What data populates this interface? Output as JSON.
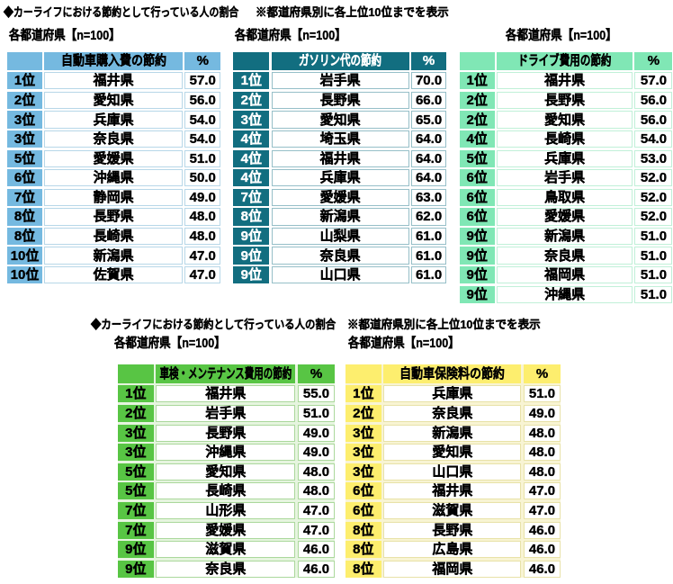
{
  "section1": {
    "title": "◆カーライフにおける節約として行っている人の割合",
    "note": "※都道府県別に各上位10位までを表示"
  },
  "section2": {
    "title": "◆カーライフにおける節約として行っている人の割合",
    "note": "※都道府県別に各上位10位までを表示"
  },
  "tables": [
    {
      "label": "各都道府県【n=100】",
      "header": {
        "rank": "",
        "name": "自動車購入費の節約",
        "pct": "%"
      },
      "colors": {
        "fill": "#75b9e0",
        "border": "#b7d7e8",
        "head_text": "#000000",
        "rank_text": "#000000"
      },
      "rows": [
        {
          "rank": "1位",
          "name": "福井県",
          "value": "57.0"
        },
        {
          "rank": "2位",
          "name": "愛知県",
          "value": "56.0"
        },
        {
          "rank": "3位",
          "name": "兵庫県",
          "value": "54.0"
        },
        {
          "rank": "3位",
          "name": "奈良県",
          "value": "54.0"
        },
        {
          "rank": "5位",
          "name": "愛媛県",
          "value": "51.0"
        },
        {
          "rank": "6位",
          "name": "沖縄県",
          "value": "50.0"
        },
        {
          "rank": "7位",
          "name": "静岡県",
          "value": "49.0"
        },
        {
          "rank": "8位",
          "name": "長野県",
          "value": "48.0"
        },
        {
          "rank": "8位",
          "name": "長崎県",
          "value": "48.0"
        },
        {
          "rank": "10位",
          "name": "新潟県",
          "value": "47.0"
        },
        {
          "rank": "10位",
          "name": "佐賀県",
          "value": "47.0"
        }
      ]
    },
    {
      "label": "各都道府県【n=100】",
      "header": {
        "rank": "",
        "name": "ガソリン代の節約",
        "pct": "%"
      },
      "colors": {
        "fill": "#126e80",
        "border": "#96bfc8",
        "head_text": "#ffffff",
        "rank_text": "#ffffff"
      },
      "rows": [
        {
          "rank": "1位",
          "name": "岩手県",
          "value": "70.0"
        },
        {
          "rank": "2位",
          "name": "長野県",
          "value": "66.0"
        },
        {
          "rank": "3位",
          "name": "愛知県",
          "value": "65.0"
        },
        {
          "rank": "4位",
          "name": "埼玉県",
          "value": "64.0"
        },
        {
          "rank": "4位",
          "name": "福井県",
          "value": "64.0"
        },
        {
          "rank": "4位",
          "name": "兵庫県",
          "value": "64.0"
        },
        {
          "rank": "7位",
          "name": "愛媛県",
          "value": "63.0"
        },
        {
          "rank": "8位",
          "name": "新潟県",
          "value": "62.0"
        },
        {
          "rank": "9位",
          "name": "山梨県",
          "value": "61.0"
        },
        {
          "rank": "9位",
          "name": "奈良県",
          "value": "61.0"
        },
        {
          "rank": "9位",
          "name": "山口県",
          "value": "61.0"
        }
      ]
    },
    {
      "label": "各都道府県【n=100】",
      "header": {
        "rank": "",
        "name": "ドライブ費用の節約",
        "pct": "%"
      },
      "colors": {
        "fill": "#80e7b5",
        "border": "#c0f0d8",
        "head_text": "#000000",
        "rank_text": "#000000"
      },
      "rows": [
        {
          "rank": "1位",
          "name": "福井県",
          "value": "57.0"
        },
        {
          "rank": "2位",
          "name": "長野県",
          "value": "56.0"
        },
        {
          "rank": "2位",
          "name": "愛知県",
          "value": "56.0"
        },
        {
          "rank": "4位",
          "name": "長崎県",
          "value": "54.0"
        },
        {
          "rank": "5位",
          "name": "兵庫県",
          "value": "53.0"
        },
        {
          "rank": "6位",
          "name": "岩手県",
          "value": "52.0"
        },
        {
          "rank": "6位",
          "name": "鳥取県",
          "value": "52.0"
        },
        {
          "rank": "6位",
          "name": "愛媛県",
          "value": "52.0"
        },
        {
          "rank": "9位",
          "name": "新潟県",
          "value": "51.0"
        },
        {
          "rank": "9位",
          "name": "奈良県",
          "value": "51.0"
        },
        {
          "rank": "9位",
          "name": "福岡県",
          "value": "51.0"
        },
        {
          "rank": "9位",
          "name": "沖縄県",
          "value": "51.0"
        }
      ]
    },
    {
      "label": "各都道府県【n=100】",
      "header": {
        "rank": "",
        "name": "車検・メンテナンス費用の節約",
        "pct": "%"
      },
      "colors": {
        "fill": "#58c544",
        "border": "#abd89c",
        "gap_bg": "#e6f5df",
        "head_text": "#000000",
        "rank_text": "#000000"
      },
      "rows": [
        {
          "rank": "1位",
          "name": "福井県",
          "value": "55.0"
        },
        {
          "rank": "2位",
          "name": "岩手県",
          "value": "51.0"
        },
        {
          "rank": "3位",
          "name": "長野県",
          "value": "49.0"
        },
        {
          "rank": "3位",
          "name": "沖縄県",
          "value": "49.0"
        },
        {
          "rank": "5位",
          "name": "愛知県",
          "value": "48.0"
        },
        {
          "rank": "5位",
          "name": "長崎県",
          "value": "48.0"
        },
        {
          "rank": "7位",
          "name": "山形県",
          "value": "47.0"
        },
        {
          "rank": "7位",
          "name": "愛媛県",
          "value": "47.0"
        },
        {
          "rank": "9位",
          "name": "滋賀県",
          "value": "46.0"
        },
        {
          "rank": "9位",
          "name": "奈良県",
          "value": "46.0"
        }
      ]
    },
    {
      "label": "各都道府県【n=100】",
      "header": {
        "rank": "",
        "name": "自動車保険料の節約",
        "pct": "%"
      },
      "colors": {
        "fill": "#fdee6e",
        "border": "#e8e2a8",
        "gap_bg": "#f8f4d3",
        "head_text": "#000000",
        "rank_text": "#000000"
      },
      "rows": [
        {
          "rank": "1位",
          "name": "兵庫県",
          "value": "51.0"
        },
        {
          "rank": "2位",
          "name": "奈良県",
          "value": "49.0"
        },
        {
          "rank": "3位",
          "name": "新潟県",
          "value": "48.0"
        },
        {
          "rank": "3位",
          "name": "愛知県",
          "value": "48.0"
        },
        {
          "rank": "3位",
          "name": "山口県",
          "value": "48.0"
        },
        {
          "rank": "6位",
          "name": "福井県",
          "value": "47.0"
        },
        {
          "rank": "6位",
          "name": "滋賀県",
          "value": "47.0"
        },
        {
          "rank": "8位",
          "name": "長野県",
          "value": "46.0"
        },
        {
          "rank": "8位",
          "name": "広島県",
          "value": "46.0"
        },
        {
          "rank": "8位",
          "name": "福岡県",
          "value": "46.0"
        }
      ]
    }
  ]
}
